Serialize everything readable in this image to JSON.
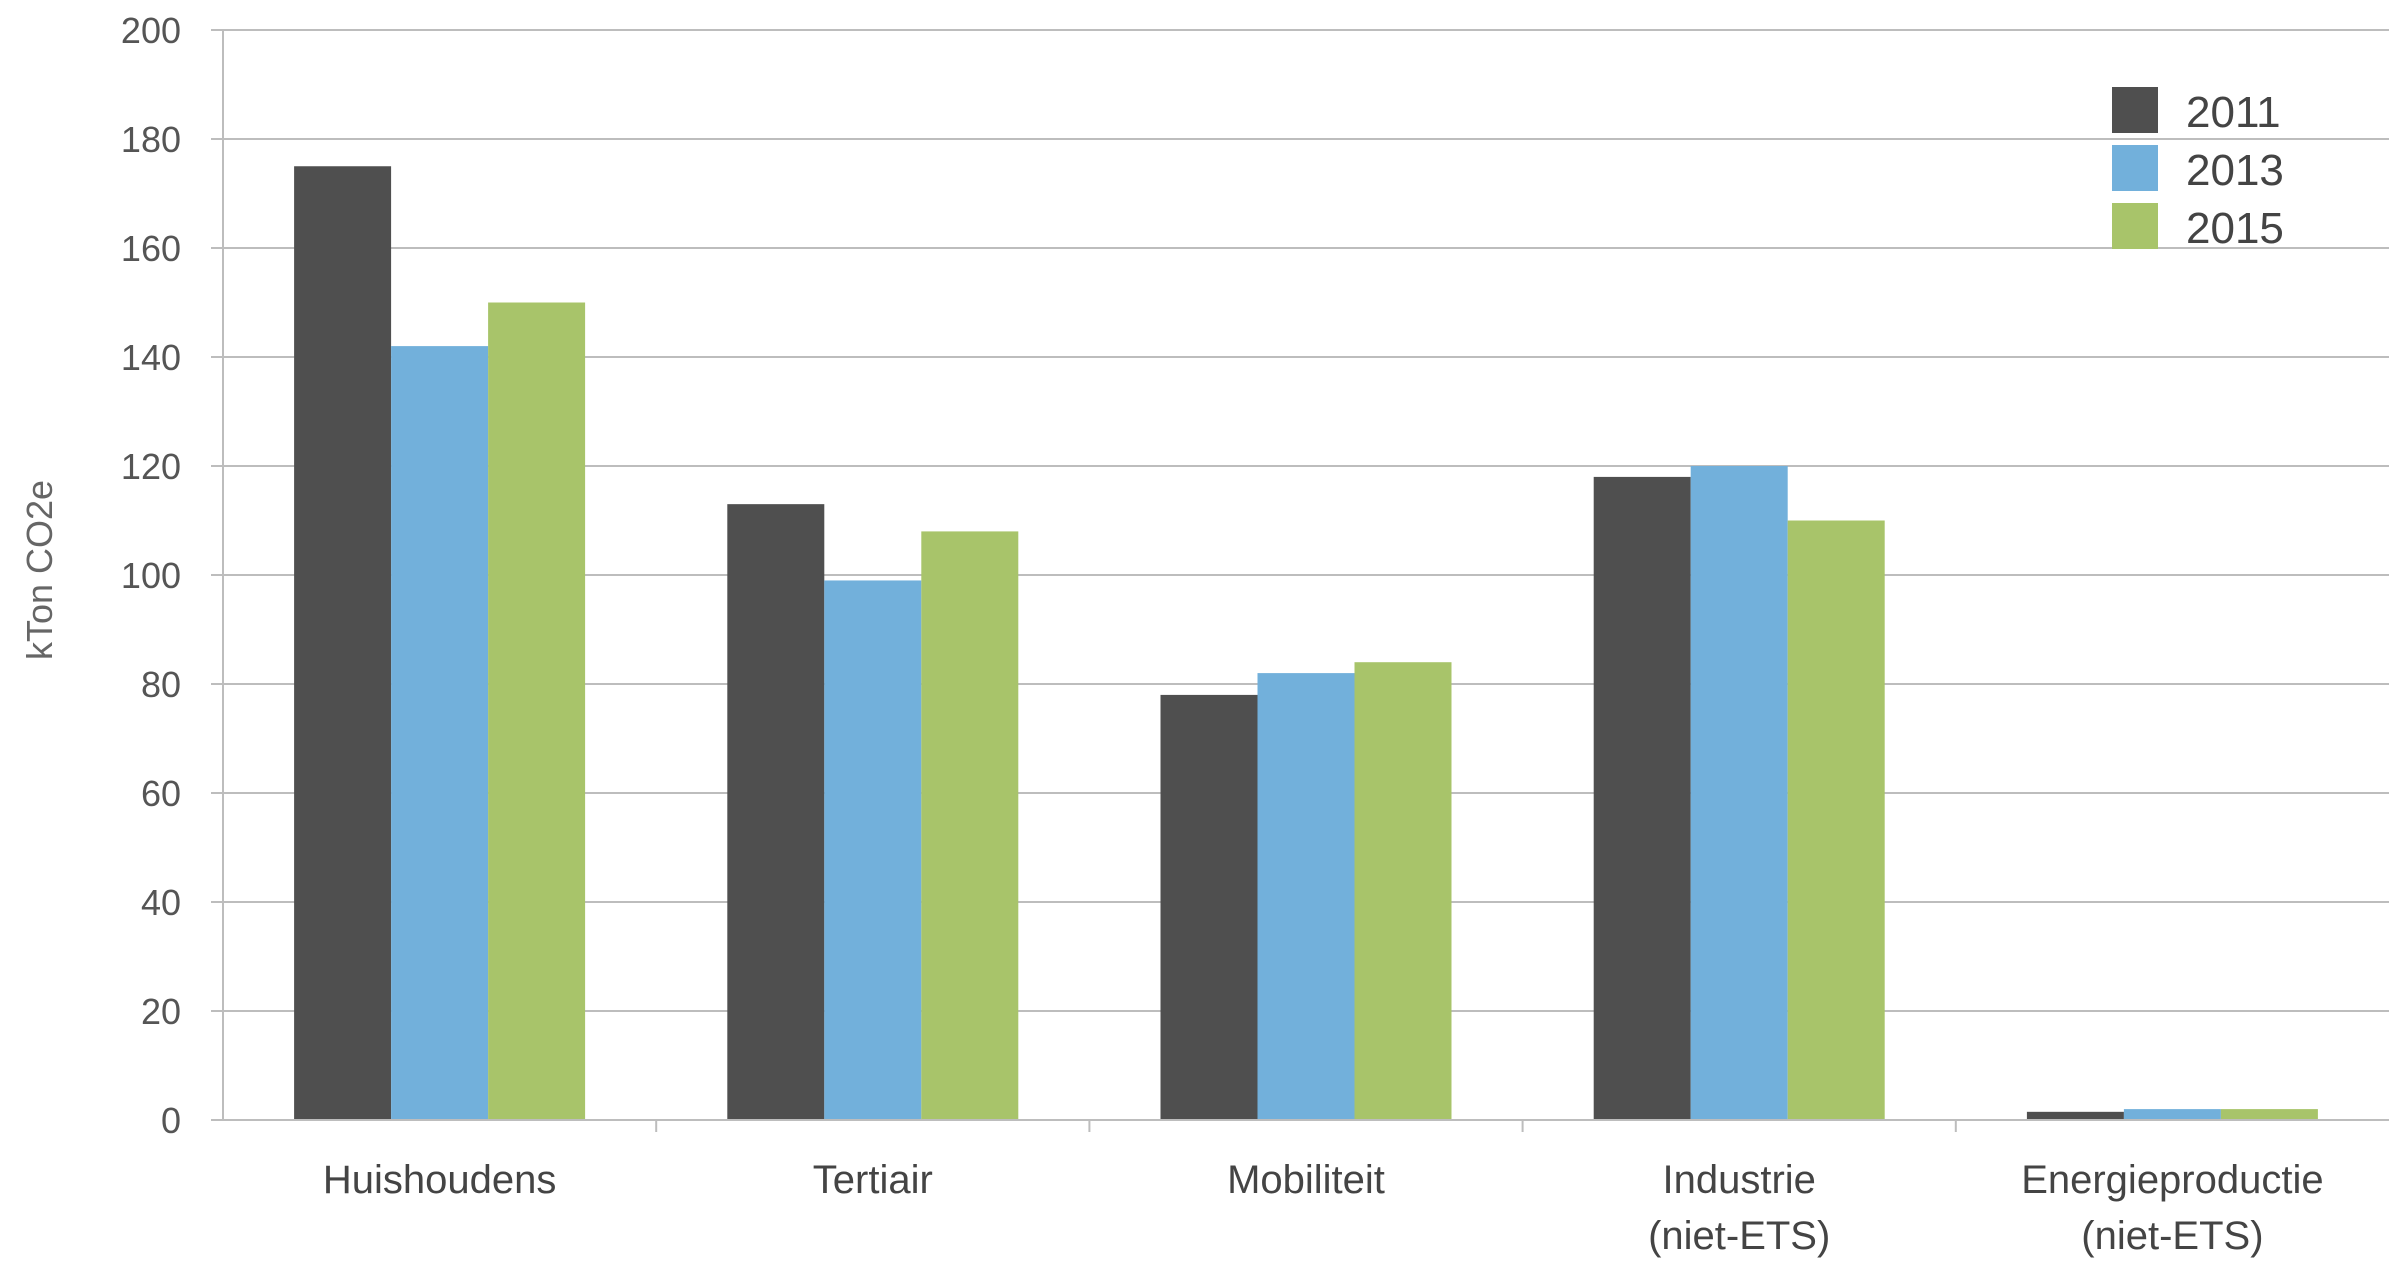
{
  "chart_data": {
    "type": "bar",
    "ylabel": "kTon CO2e",
    "xlabel": "",
    "ylim": [
      0,
      200
    ],
    "yticks": [
      "0",
      "20",
      "40",
      "60",
      "80",
      "100",
      "120",
      "140",
      "160",
      "180",
      "200"
    ],
    "grid": true,
    "legend_position": "top-right",
    "categories": [
      [
        "Huishoudens"
      ],
      [
        "Tertiair"
      ],
      [
        "Mobiliteit"
      ],
      [
        "Industrie",
        "(niet-ETS)"
      ],
      [
        "Energieproductie",
        "(niet-ETS)"
      ]
    ],
    "series": [
      {
        "name": "2011",
        "color": "#4f4f4f",
        "values": [
          175,
          113,
          78,
          118,
          1.5
        ]
      },
      {
        "name": "2013",
        "color": "#72b0db",
        "values": [
          142,
          99,
          82,
          120,
          2
        ]
      },
      {
        "name": "2015",
        "color": "#a8c46a",
        "values": [
          150,
          108,
          84,
          110,
          2
        ]
      }
    ]
  }
}
